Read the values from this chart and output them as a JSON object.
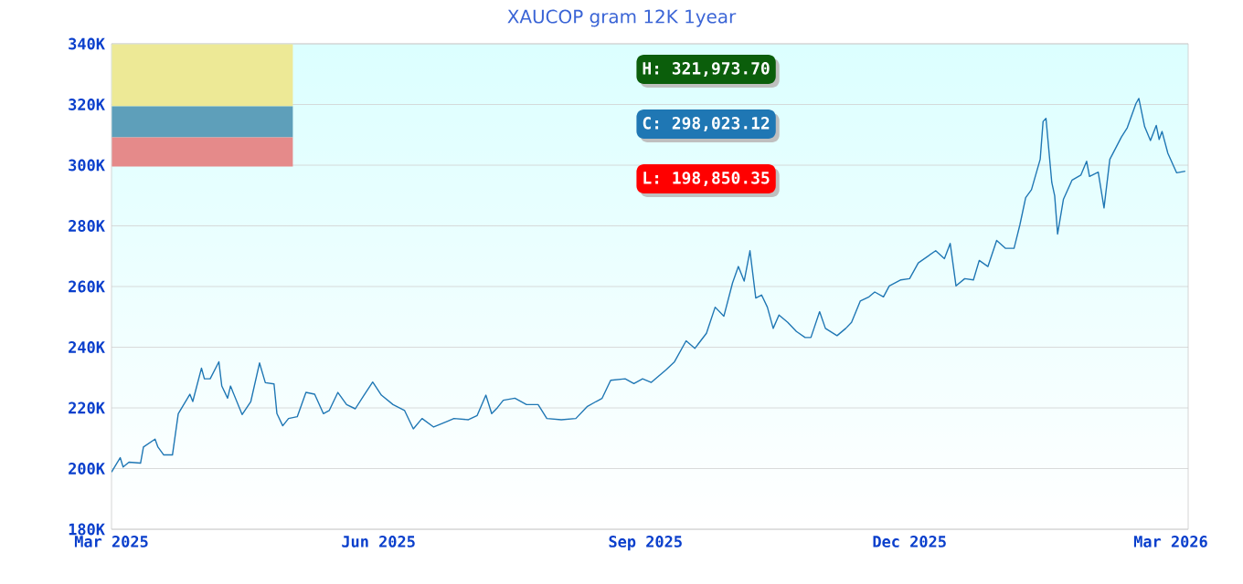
{
  "chart_data": {
    "type": "line",
    "title": "XAUCOP gram 12K 1year",
    "annotations": [
      "H: 321,973.70",
      "C: 298,023.12",
      "L: 198,850.35"
    ],
    "xlim": [
      "2025-03-01",
      "2026-03-07"
    ],
    "xticks": [
      {
        "value": "2025-03-01",
        "label": "Mar 2025"
      },
      {
        "value": "2025-06-01",
        "label": "Jun 2025"
      },
      {
        "value": "2025-09-01",
        "label": "Sep 2025"
      },
      {
        "value": "2025-12-01",
        "label": "Dec 2025"
      },
      {
        "value": "2026-03-01",
        "label": "Mar 2026"
      }
    ],
    "ylim": [
      180000,
      340000
    ],
    "yticks": [
      {
        "value": 180000,
        "label": "180K"
      },
      {
        "value": 200000,
        "label": "200K"
      },
      {
        "value": 220000,
        "label": "220K"
      },
      {
        "value": 240000,
        "label": "240K"
      },
      {
        "value": 260000,
        "label": "260K"
      },
      {
        "value": 280000,
        "label": "280K"
      },
      {
        "value": 300000,
        "label": "300K"
      },
      {
        "value": 320000,
        "label": "320K"
      },
      {
        "value": 340000,
        "label": "340K"
      }
    ],
    "grid": "y",
    "x": [
      "2025-03-01",
      "2025-03-04",
      "2025-03-05",
      "2025-03-07",
      "2025-03-11",
      "2025-03-12",
      "2025-03-16",
      "2025-03-17",
      "2025-03-19",
      "2025-03-22",
      "2025-03-24",
      "2025-03-28",
      "2025-03-29",
      "2025-04-01",
      "2025-04-02",
      "2025-04-04",
      "2025-04-07",
      "2025-04-08",
      "2025-04-10",
      "2025-04-11",
      "2025-04-15",
      "2025-04-18",
      "2025-04-21",
      "2025-04-23",
      "2025-04-26",
      "2025-04-27",
      "2025-04-29",
      "2025-05-01",
      "2025-05-04",
      "2025-05-07",
      "2025-05-10",
      "2025-05-13",
      "2025-05-15",
      "2025-05-18",
      "2025-05-21",
      "2025-05-24",
      "2025-05-27",
      "2025-05-30",
      "2025-06-02",
      "2025-06-06",
      "2025-06-10",
      "2025-06-13",
      "2025-06-16",
      "2025-06-20",
      "2025-06-25",
      "2025-06-27",
      "2025-07-02",
      "2025-07-05",
      "2025-07-08",
      "2025-07-10",
      "2025-07-12",
      "2025-07-14",
      "2025-07-18",
      "2025-07-22",
      "2025-07-26",
      "2025-07-29",
      "2025-08-03",
      "2025-08-08",
      "2025-08-12",
      "2025-08-15",
      "2025-08-17",
      "2025-08-20",
      "2025-08-25",
      "2025-08-28",
      "2025-08-31",
      "2025-09-03",
      "2025-09-08",
      "2025-09-11",
      "2025-09-15",
      "2025-09-18",
      "2025-09-22",
      "2025-09-25",
      "2025-09-28",
      "2025-10-01",
      "2025-10-03",
      "2025-10-05",
      "2025-10-07",
      "2025-10-09",
      "2025-10-11",
      "2025-10-13",
      "2025-10-15",
      "2025-10-17",
      "2025-10-20",
      "2025-10-23",
      "2025-10-26",
      "2025-10-28",
      "2025-10-31",
      "2025-11-02",
      "2025-11-06",
      "2025-11-09",
      "2025-11-11",
      "2025-11-14",
      "2025-11-17",
      "2025-11-19",
      "2025-11-22",
      "2025-11-24",
      "2025-11-28",
      "2025-12-01",
      "2025-12-04",
      "2025-12-07",
      "2025-12-10",
      "2025-12-13",
      "2025-12-15",
      "2025-12-17",
      "2025-12-20",
      "2025-12-23",
      "2025-12-25",
      "2025-12-28",
      "2025-12-31",
      "2026-01-03",
      "2026-01-06",
      "2026-01-08",
      "2026-01-10",
      "2026-01-12",
      "2026-01-15",
      "2026-01-16",
      "2026-01-17",
      "2026-01-19",
      "2026-01-20",
      "2026-01-21",
      "2026-01-23",
      "2026-01-26",
      "2026-01-29",
      "2026-01-31",
      "2026-02-01",
      "2026-02-04",
      "2026-02-06",
      "2026-02-08",
      "2026-02-12",
      "2026-02-14",
      "2026-02-17",
      "2026-02-18",
      "2026-02-20",
      "2026-02-22",
      "2026-02-24",
      "2026-02-25",
      "2026-02-26",
      "2026-02-28",
      "2026-03-03",
      "2026-03-06"
    ],
    "series": [
      {
        "color": "#1f77b4",
        "values": [
          198850,
          203600,
          200500,
          202100,
          201800,
          207100,
          209700,
          207100,
          204500,
          204500,
          218100,
          224500,
          222100,
          233100,
          229600,
          229600,
          235200,
          227200,
          223200,
          227200,
          217800,
          222100,
          234800,
          228300,
          227900,
          218100,
          214100,
          216500,
          217100,
          225100,
          224500,
          218100,
          219100,
          225100,
          221100,
          219700,
          224200,
          228500,
          224200,
          221100,
          219100,
          213100,
          216500,
          213700,
          215700,
          216500,
          216100,
          217500,
          224200,
          218100,
          220100,
          222500,
          223200,
          221100,
          221100,
          216500,
          216100,
          216500,
          220500,
          222100,
          223100,
          229100,
          229600,
          228000,
          229600,
          228400,
          232500,
          235200,
          242100,
          239600,
          244600,
          253200,
          250200,
          261200,
          266600,
          261800,
          271800,
          256200,
          257200,
          253200,
          246200,
          250600,
          248200,
          245200,
          243200,
          243200,
          251700,
          246200,
          243800,
          246200,
          248200,
          255200,
          256600,
          258200,
          256600,
          260200,
          262200,
          262600,
          267800,
          269800,
          271800,
          269200,
          274200,
          260200,
          262600,
          262200,
          268600,
          266600,
          275200,
          272600,
          272600,
          280300,
          289300,
          291900,
          301900,
          314400,
          315400,
          294300,
          289900,
          277300,
          288700,
          295100,
          296700,
          301300,
          296300,
          297700,
          285900,
          301900,
          309300,
          312300,
          320300,
          321974,
          312700,
          308100,
          313100,
          308500,
          311100,
          303900,
          297500,
          298023
        ]
      }
    ]
  }
}
